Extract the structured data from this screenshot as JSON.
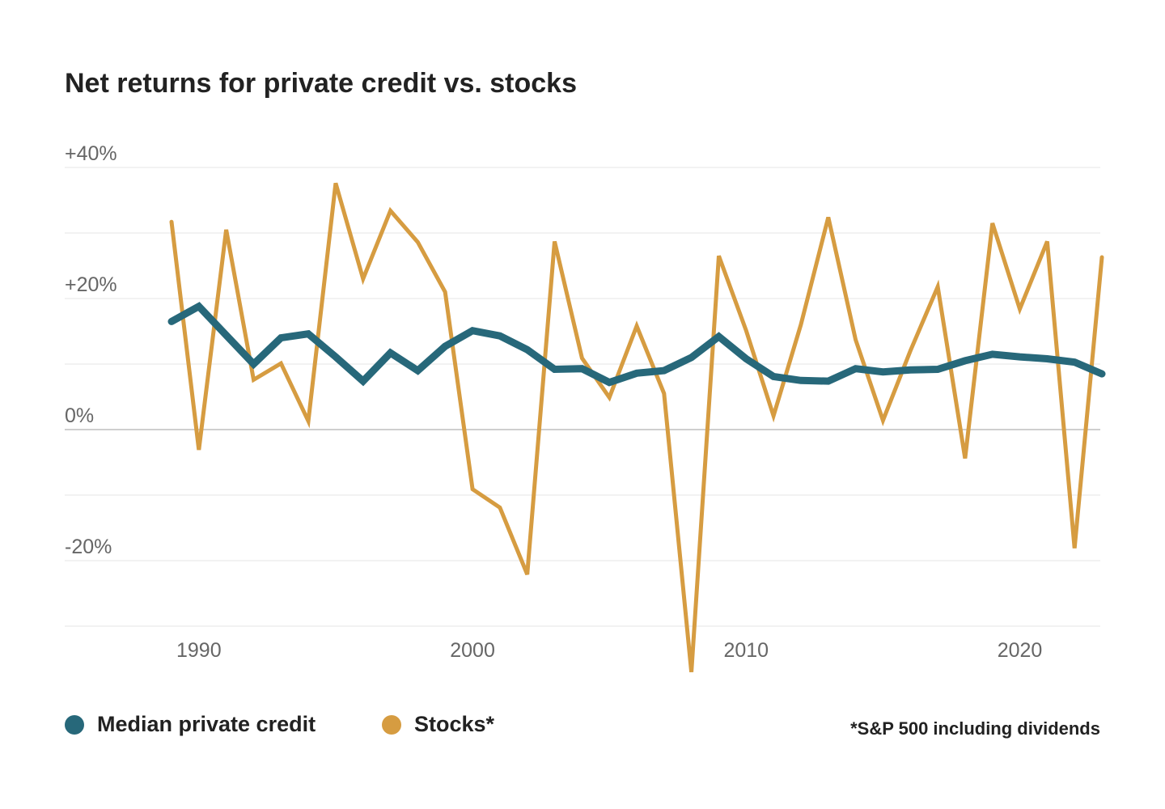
{
  "colors": {
    "private_credit": "#27687a",
    "stocks": "#d69c41",
    "grid": "#eeeeee",
    "zero_line": "#cfcfcf",
    "tick_text": "#666666"
  },
  "chart_data": {
    "type": "line",
    "title": "Net returns for private credit vs. stocks",
    "xlabel": "",
    "ylabel": "",
    "xlim": [
      1985,
      2023
    ],
    "ylim": [
      -30,
      40
    ],
    "grid": true,
    "legend_position": "bottom",
    "note": "*S&P 500 including dividends",
    "x_ticks": [
      {
        "value": 1990,
        "label": "1990"
      },
      {
        "value": 2000,
        "label": "2000"
      },
      {
        "value": 2010,
        "label": "2010"
      },
      {
        "value": 2020,
        "label": "2020"
      }
    ],
    "y_ticks": [
      {
        "value": 40,
        "label": "+40%"
      },
      {
        "value": 20,
        "label": "+20%"
      },
      {
        "value": 0,
        "label": "0%"
      },
      {
        "value": -20,
        "label": "-20%"
      }
    ],
    "y_gridlines": [
      40,
      30,
      20,
      10,
      0,
      -10,
      -20,
      -30
    ],
    "series": [
      {
        "name": "Median private credit",
        "color": "#27687a",
        "x": [
          1989,
          1990,
          1991,
          1992,
          1993,
          1994,
          1995,
          1996,
          1997,
          1998,
          1999,
          2000,
          2001,
          2002,
          2003,
          2004,
          2005,
          2006,
          2007,
          2008,
          2009,
          2010,
          2011,
          2012,
          2013,
          2014,
          2015,
          2016,
          2017,
          2018,
          2019,
          2020,
          2021,
          2022,
          2023
        ],
        "values": [
          16.5,
          18.8,
          14.4,
          10.0,
          14.0,
          14.6,
          11.1,
          7.4,
          11.7,
          9.0,
          12.7,
          15.1,
          14.3,
          12.2,
          9.2,
          9.3,
          7.2,
          8.6,
          9.0,
          11.0,
          14.2,
          10.8,
          8.1,
          7.5,
          7.4,
          9.3,
          8.8,
          9.1,
          9.2,
          10.5,
          11.5,
          11.1,
          10.8,
          10.3,
          8.5
        ]
      },
      {
        "name": "Stocks*",
        "color": "#d69c41",
        "x": [
          1989,
          1990,
          1991,
          1992,
          1993,
          1994,
          1995,
          1996,
          1997,
          1998,
          1999,
          2000,
          2001,
          2002,
          2003,
          2004,
          2005,
          2006,
          2007,
          2008,
          2009,
          2010,
          2011,
          2012,
          2013,
          2014,
          2015,
          2016,
          2017,
          2018,
          2019,
          2020,
          2021,
          2022,
          2023
        ],
        "values": [
          31.7,
          -3.1,
          30.5,
          7.6,
          10.1,
          1.3,
          37.6,
          23.0,
          33.4,
          28.6,
          21.0,
          -9.1,
          -11.9,
          -22.1,
          28.7,
          10.9,
          4.9,
          15.8,
          5.5,
          -37.0,
          26.5,
          15.1,
          2.1,
          16.0,
          32.4,
          13.7,
          1.4,
          12.0,
          21.8,
          -4.4,
          31.5,
          18.4,
          28.7,
          -18.1,
          26.3
        ]
      }
    ]
  }
}
